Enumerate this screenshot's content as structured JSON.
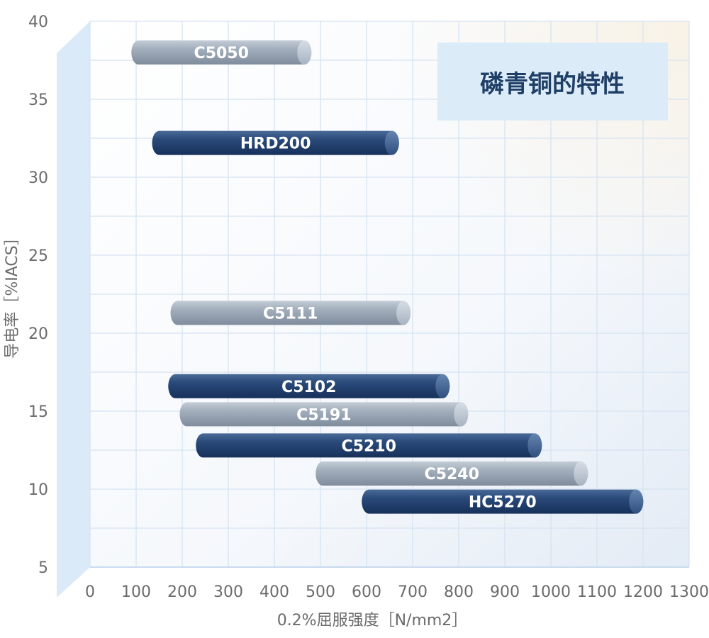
{
  "chart_data": {
    "type": "bar",
    "orientation": "horizontal-range",
    "title": "磷青铜的特性",
    "xlabel": "0.2%屈服强度［N/mm2］",
    "ylabel": "导电率［%IACS］",
    "xlim": [
      0,
      1300
    ],
    "ylim": [
      5,
      40
    ],
    "x_ticks": [
      0,
      100,
      200,
      300,
      400,
      500,
      600,
      700,
      800,
      900,
      1000,
      1100,
      1200,
      1300
    ],
    "y_ticks": [
      5,
      10,
      15,
      20,
      25,
      30,
      35,
      40
    ],
    "grid": true,
    "series": [
      {
        "label": "C5050",
        "x_start": 105,
        "x_end": 465,
        "y": 38,
        "color": "#9aa6b4"
      },
      {
        "label": "HRD200",
        "x_start": 150,
        "x_end": 655,
        "y": 32.2,
        "color": "#1f3c68"
      },
      {
        "label": "C5111",
        "x_start": 190,
        "x_end": 680,
        "y": 21.3,
        "color": "#9aa6b4"
      },
      {
        "label": "C5102",
        "x_start": 185,
        "x_end": 765,
        "y": 16.6,
        "color": "#1f3c68"
      },
      {
        "label": "C5191",
        "x_start": 210,
        "x_end": 805,
        "y": 14.8,
        "color": "#9aa6b4"
      },
      {
        "label": "C5210",
        "x_start": 245,
        "x_end": 965,
        "y": 12.8,
        "color": "#1f3c68"
      },
      {
        "label": "C5240",
        "x_start": 505,
        "x_end": 1065,
        "y": 11.0,
        "color": "#9aa6b4"
      },
      {
        "label": "HC5270",
        "x_start": 605,
        "x_end": 1185,
        "y": 9.2,
        "color": "#1f3c68"
      }
    ]
  }
}
